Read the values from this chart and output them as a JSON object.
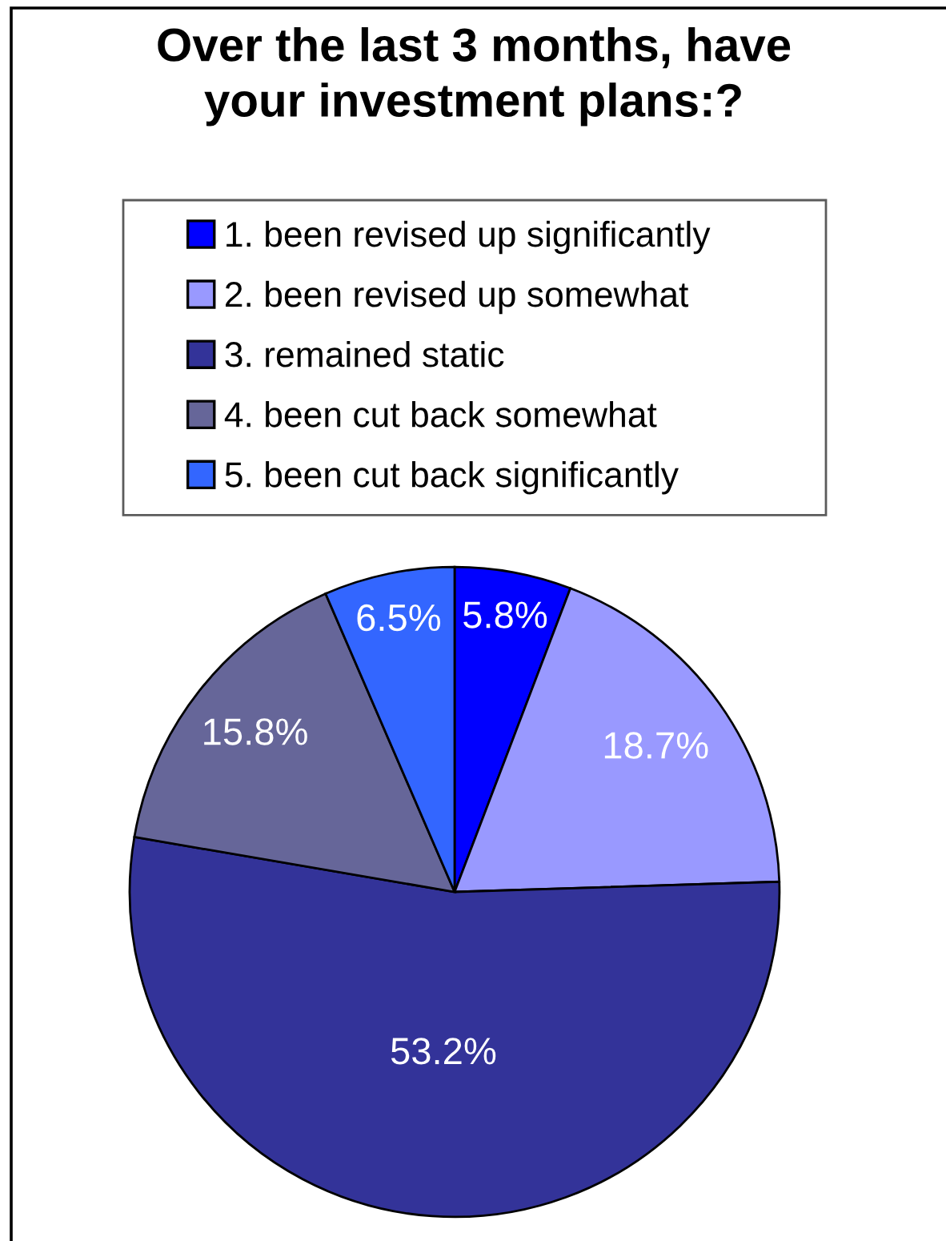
{
  "chart_data": {
    "type": "pie",
    "title": "Over the last 3 months, have your investment plans:?",
    "categories": [
      "1. been revised up significantly",
      "2. been revised up somewhat",
      "3. remained static",
      "4. been cut back somewhat",
      "5. been cut back significantly"
    ],
    "values": [
      5.8,
      18.7,
      53.2,
      15.8,
      6.5
    ],
    "colors": [
      "#0000ff",
      "#9999ff",
      "#333399",
      "#666699",
      "#3366ff"
    ],
    "value_labels": [
      "5.8%",
      "18.7%",
      "53.2%",
      "15.8%",
      "6.5%"
    ],
    "legend": "top"
  }
}
